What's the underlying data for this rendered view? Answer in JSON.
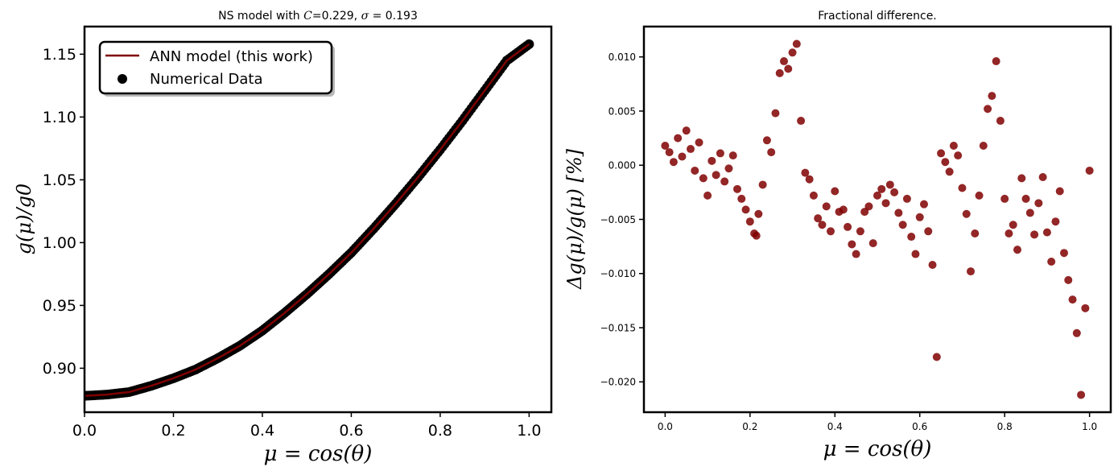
{
  "colors": {
    "accent": "#800000",
    "axis": "#000000",
    "marker_edge": "#000000"
  },
  "chart_data": [
    {
      "type": "line",
      "title": "NS model with C=0.229, σ = 0.193",
      "title_parts": {
        "prefix": "NS model with ",
        "c_symbol": "C",
        "c_value": "=0.229, ",
        "sigma_symbol": "σ",
        "sigma_value": " = 0.193"
      },
      "xlabel": "μ = cos(θ)",
      "ylabel": "g(μ)/g0",
      "xlim": [
        0.0,
        1.05
      ],
      "ylim": [
        0.865,
        1.172
      ],
      "xticks": [
        0.0,
        0.2,
        0.4,
        0.6,
        0.8,
        1.0
      ],
      "xticklabels": [
        "0.0",
        "0.2",
        "0.4",
        "0.6",
        "0.8",
        "1.0"
      ],
      "yticks": [
        0.9,
        0.95,
        1.0,
        1.05,
        1.1,
        1.15
      ],
      "yticklabels": [
        "0.90",
        "0.95",
        "1.00",
        "1.05",
        "1.10",
        "1.15"
      ],
      "grid": false,
      "legend": {
        "placement": "top-left",
        "entries": [
          {
            "label": "ANN model (this work)",
            "kind": "line",
            "color": "#800000"
          },
          {
            "label": "Numerical Data",
            "kind": "marker",
            "color": "#000000"
          }
        ]
      },
      "series": [
        {
          "name": "ANN model (this work)",
          "kind": "line",
          "color": "#800000",
          "x": [
            0.0,
            0.05,
            0.1,
            0.15,
            0.2,
            0.25,
            0.3,
            0.35,
            0.4,
            0.45,
            0.5,
            0.55,
            0.6,
            0.65,
            0.7,
            0.75,
            0.8,
            0.85,
            0.9,
            0.95,
            1.0
          ],
          "y": [
            0.878,
            0.879,
            0.881,
            0.886,
            0.892,
            0.899,
            0.908,
            0.918,
            0.93,
            0.944,
            0.959,
            0.975,
            0.992,
            1.011,
            1.031,
            1.052,
            1.074,
            1.097,
            1.121,
            1.145,
            1.158
          ]
        },
        {
          "name": "Numerical Data",
          "kind": "scatter",
          "color": "#000000",
          "x": [
            0.0,
            0.05,
            0.1,
            0.15,
            0.2,
            0.25,
            0.3,
            0.35,
            0.4,
            0.45,
            0.5,
            0.55,
            0.6,
            0.65,
            0.7,
            0.75,
            0.8,
            0.85,
            0.9,
            0.95,
            1.0
          ],
          "y": [
            0.878,
            0.879,
            0.881,
            0.886,
            0.892,
            0.899,
            0.908,
            0.918,
            0.93,
            0.944,
            0.959,
            0.975,
            0.992,
            1.011,
            1.031,
            1.052,
            1.074,
            1.097,
            1.121,
            1.145,
            1.158
          ]
        }
      ]
    },
    {
      "type": "scatter",
      "title": "Fractional difference.",
      "xlabel": "μ = cos(θ)",
      "ylabel": "Δg(μ)/g(μ) [%]",
      "xlim": [
        -0.05,
        1.05
      ],
      "ylim": [
        -0.0228,
        0.0128
      ],
      "xticks": [
        0.0,
        0.2,
        0.4,
        0.6,
        0.8,
        1.0
      ],
      "xticklabels": [
        "0.0",
        "0.2",
        "0.4",
        "0.6",
        "0.8",
        "1.0"
      ],
      "yticks": [
        0.01,
        0.005,
        0.0,
        -0.005,
        -0.01,
        -0.015,
        -0.02
      ],
      "yticklabels": [
        "0.010",
        "0.005",
        "0.000",
        "−0.005",
        "−0.010",
        "−0.015",
        "−0.020"
      ],
      "grid": false,
      "series": [
        {
          "kind": "scatter",
          "color": "#800000",
          "x": [
            0.0,
            0.01,
            0.02,
            0.03,
            0.04,
            0.05,
            0.06,
            0.07,
            0.08,
            0.09,
            0.1,
            0.11,
            0.12,
            0.13,
            0.14,
            0.15,
            0.16,
            0.17,
            0.18,
            0.19,
            0.2,
            0.21,
            0.215,
            0.22,
            0.23,
            0.24,
            0.25,
            0.26,
            0.27,
            0.28,
            0.29,
            0.3,
            0.31,
            0.32,
            0.33,
            0.34,
            0.35,
            0.36,
            0.37,
            0.38,
            0.39,
            0.4,
            0.41,
            0.42,
            0.43,
            0.44,
            0.45,
            0.46,
            0.47,
            0.48,
            0.49,
            0.5,
            0.51,
            0.52,
            0.53,
            0.54,
            0.55,
            0.56,
            0.57,
            0.58,
            0.59,
            0.6,
            0.61,
            0.62,
            0.63,
            0.64,
            0.65,
            0.66,
            0.67,
            0.68,
            0.69,
            0.7,
            0.71,
            0.72,
            0.73,
            0.74,
            0.75,
            0.76,
            0.77,
            0.78,
            0.79,
            0.8,
            0.81,
            0.82,
            0.83,
            0.84,
            0.85,
            0.86,
            0.87,
            0.88,
            0.89,
            0.9,
            0.91,
            0.92,
            0.93,
            0.94,
            0.95,
            0.96,
            0.97,
            0.98,
            0.99,
            1.0
          ],
          "y": [
            0.0018,
            0.0012,
            0.0003,
            0.0025,
            0.0008,
            0.0032,
            0.0015,
            -0.0005,
            0.0021,
            -0.0012,
            -0.0028,
            0.0004,
            -0.0009,
            0.0011,
            -0.0015,
            -0.0003,
            0.0009,
            -0.0022,
            -0.0031,
            -0.0041,
            -0.0052,
            -0.0063,
            -0.0065,
            -0.0045,
            -0.0018,
            0.0023,
            0.0012,
            0.0048,
            0.0085,
            0.0096,
            0.0089,
            0.0104,
            0.0112,
            0.0041,
            -0.0007,
            -0.0013,
            -0.0028,
            -0.0049,
            -0.0055,
            -0.0038,
            -0.0061,
            -0.0024,
            -0.0043,
            -0.0041,
            -0.0057,
            -0.0073,
            -0.0082,
            -0.0061,
            -0.0043,
            -0.0038,
            -0.0072,
            -0.0028,
            -0.0022,
            -0.0035,
            -0.0018,
            -0.0025,
            -0.0044,
            -0.0055,
            -0.0031,
            -0.0066,
            -0.0082,
            -0.0048,
            -0.0036,
            -0.0061,
            -0.0092,
            -0.0177,
            0.0011,
            0.0003,
            -0.0006,
            0.0018,
            0.0009,
            -0.0021,
            -0.0045,
            -0.0098,
            -0.0063,
            -0.0028,
            0.0018,
            0.0052,
            0.0064,
            0.0096,
            0.0041,
            -0.0031,
            -0.0063,
            -0.0055,
            -0.0078,
            -0.0012,
            -0.0031,
            -0.0044,
            -0.0064,
            -0.0035,
            -0.0011,
            -0.0062,
            -0.0089,
            -0.0052,
            -0.0024,
            -0.0081,
            -0.0106,
            -0.0124,
            -0.0155,
            -0.0212,
            -0.0132,
            -0.0005
          ]
        }
      ]
    }
  ]
}
